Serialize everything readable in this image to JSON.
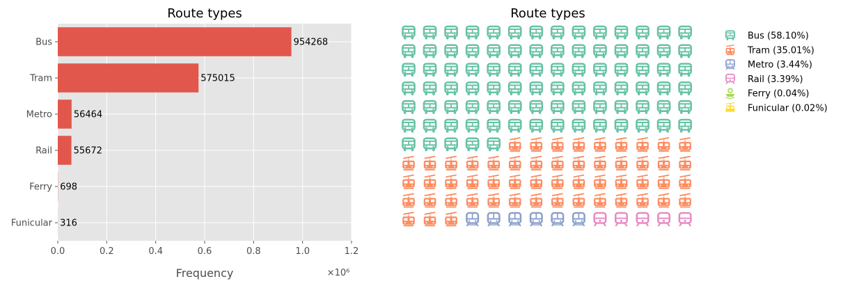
{
  "chart_data": [
    {
      "type": "bar",
      "orientation": "horizontal",
      "title": "Route types",
      "categories": [
        "Bus",
        "Tram",
        "Metro",
        "Rail",
        "Ferry",
        "Funicular"
      ],
      "values": [
        954268,
        575015,
        56464,
        55672,
        698,
        316
      ],
      "data_labels": [
        "954268",
        "575015",
        "56464",
        "55672",
        "698",
        "316"
      ],
      "xlabel": "Frequency",
      "ylabel": "",
      "xlim": [
        0,
        1200000
      ],
      "x_ticks": [
        "0.0",
        "0.2",
        "0.4",
        "0.6",
        "0.8",
        "1.0",
        "1.2"
      ],
      "x_offset_text": "×10⁶",
      "grid": true,
      "style": "ggplot",
      "bar_color": "#e2574c"
    },
    {
      "type": "waffle",
      "title": "Route types",
      "rows": 11,
      "columns": 14,
      "categories": [
        "Bus",
        "Tram",
        "Metro",
        "Rail",
        "Ferry",
        "Funicular"
      ],
      "icon_counts": [
        89,
        54,
        6,
        5,
        0,
        0
      ],
      "legend": [
        "Bus (58.10%)",
        "Tram (35.01%)",
        "Metro (3.44%)",
        "Rail (3.39%)",
        "Ferry (0.04%)",
        "Funicular (0.02%)"
      ],
      "legend_position": "right",
      "colors": [
        "#66c2a5",
        "#fc8d62",
        "#8da0cb",
        "#e78ac3",
        "#a6d854",
        "#ffd92f"
      ],
      "icons": [
        "bus-icon",
        "tram-icon",
        "subway-icon",
        "train-icon",
        "ship-icon",
        "cable-car-icon"
      ]
    }
  ]
}
